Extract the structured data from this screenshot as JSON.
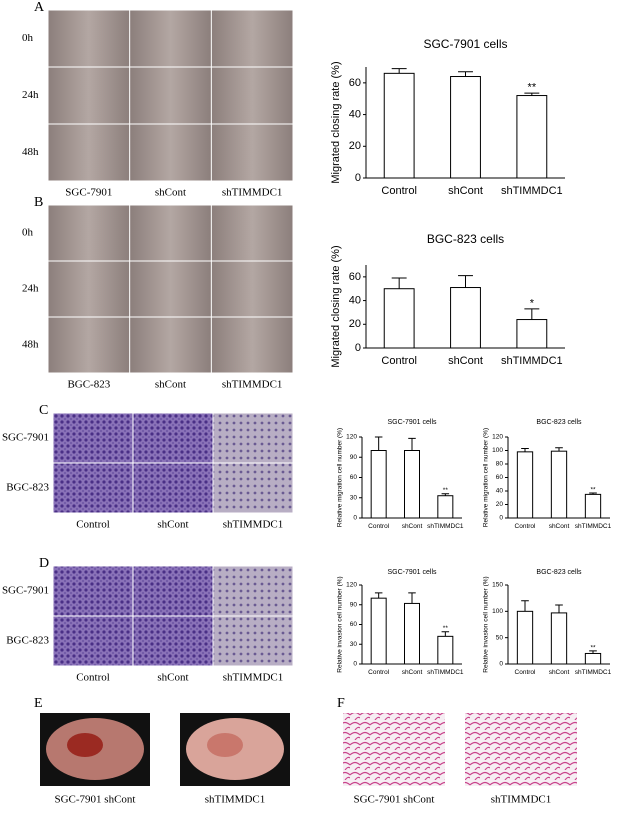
{
  "panels": [
    {
      "letter": "A",
      "row_labels": [
        "0h",
        "24h",
        "48h"
      ],
      "column_labels": [
        "SGC-7901",
        "shCont",
        "shTIMMDC1"
      ]
    },
    {
      "letter": "B",
      "row_labels": [
        "0h",
        "24h",
        "48h"
      ],
      "column_labels": [
        "BGC-823",
        "shCont",
        "shTIMMDC1"
      ]
    },
    {
      "letter": "C",
      "row_labels": [
        "SGC-7901",
        "BGC-823"
      ],
      "column_labels": [
        "Control",
        "shCont",
        "shTIMMDC1"
      ]
    },
    {
      "letter": "D",
      "row_labels": [
        "SGC-7901",
        "BGC-823"
      ],
      "column_labels": [
        "Control",
        "shCont",
        "shTIMMDC1"
      ]
    },
    {
      "letter": "E",
      "captions": [
        "SGC-7901 shCont",
        "shTIMMDC1"
      ]
    },
    {
      "letter": "F",
      "captions": [
        "SGC-7901 shCont",
        "shTIMMDC1"
      ]
    }
  ],
  "chart_data": [
    {
      "type": "bar",
      "title": "SGC-7901 cells",
      "y_label": "Migrated closing rate (%)",
      "categories": [
        "Control",
        "shCont",
        "shTIMMDC1"
      ],
      "values": [
        66,
        64,
        52
      ],
      "errors": [
        3,
        3,
        1.5
      ],
      "significance": [
        null,
        null,
        "**"
      ],
      "color": "#ffffff",
      "ylim": [
        0,
        70
      ],
      "yticks": [
        0,
        20,
        40,
        60
      ]
    },
    {
      "type": "bar",
      "title": "BGC-823 cells",
      "y_label": "Migrated closing rate (%)",
      "categories": [
        "Control",
        "shCont",
        "shTIMMDC1"
      ],
      "values": [
        50,
        51,
        24
      ],
      "errors": [
        9,
        10,
        9
      ],
      "significance": [
        null,
        null,
        "*"
      ],
      "color": "#ffffff",
      "ylim": [
        0,
        70
      ],
      "yticks": [
        0,
        20,
        40,
        60
      ]
    },
    {
      "type": "bar",
      "title": "SGC-7901 cells",
      "y_label": "Relative migration cell number (%)",
      "categories": [
        "Control",
        "shCont",
        "shTIMMDC1"
      ],
      "values": [
        100,
        100,
        33
      ],
      "errors": [
        20,
        18,
        3
      ],
      "significance": [
        null,
        null,
        "**"
      ],
      "color": "#ffffff",
      "ylim": [
        0,
        120
      ],
      "yticks": [
        0,
        30,
        60,
        90,
        120
      ]
    },
    {
      "type": "bar",
      "title": "BGC-823 cells",
      "y_label": "Relative migration cell number (%)",
      "categories": [
        "Control",
        "shCont",
        "shTIMMDC1"
      ],
      "values": [
        98,
        99,
        35
      ],
      "errors": [
        5,
        5,
        2
      ],
      "significance": [
        null,
        null,
        "**"
      ],
      "color": "#ffffff",
      "ylim": [
        0,
        120
      ],
      "yticks": [
        0,
        20,
        40,
        60,
        80,
        100,
        120
      ]
    },
    {
      "type": "bar",
      "title": "SGC-7901 cells",
      "y_label": "Relative invasion cell number (%)",
      "categories": [
        "Control",
        "shCont",
        "shTIMMDC1"
      ],
      "values": [
        100,
        92,
        42
      ],
      "errors": [
        8,
        16,
        7
      ],
      "significance": [
        null,
        null,
        "**"
      ],
      "color": "#ffffff",
      "ylim": [
        0,
        120
      ],
      "yticks": [
        0,
        30,
        60,
        90,
        120
      ]
    },
    {
      "type": "bar",
      "title": "BGC-823 cells",
      "y_label": "Relative invasion cell number (%)",
      "categories": [
        "Control",
        "shCont",
        "shTIMMDC1"
      ],
      "values": [
        100,
        97,
        20
      ],
      "errors": [
        20,
        15,
        5
      ],
      "significance": [
        null,
        null,
        "**"
      ],
      "color": "#ffffff",
      "ylim": [
        0,
        150
      ],
      "yticks": [
        0,
        50,
        100,
        150
      ]
    }
  ]
}
